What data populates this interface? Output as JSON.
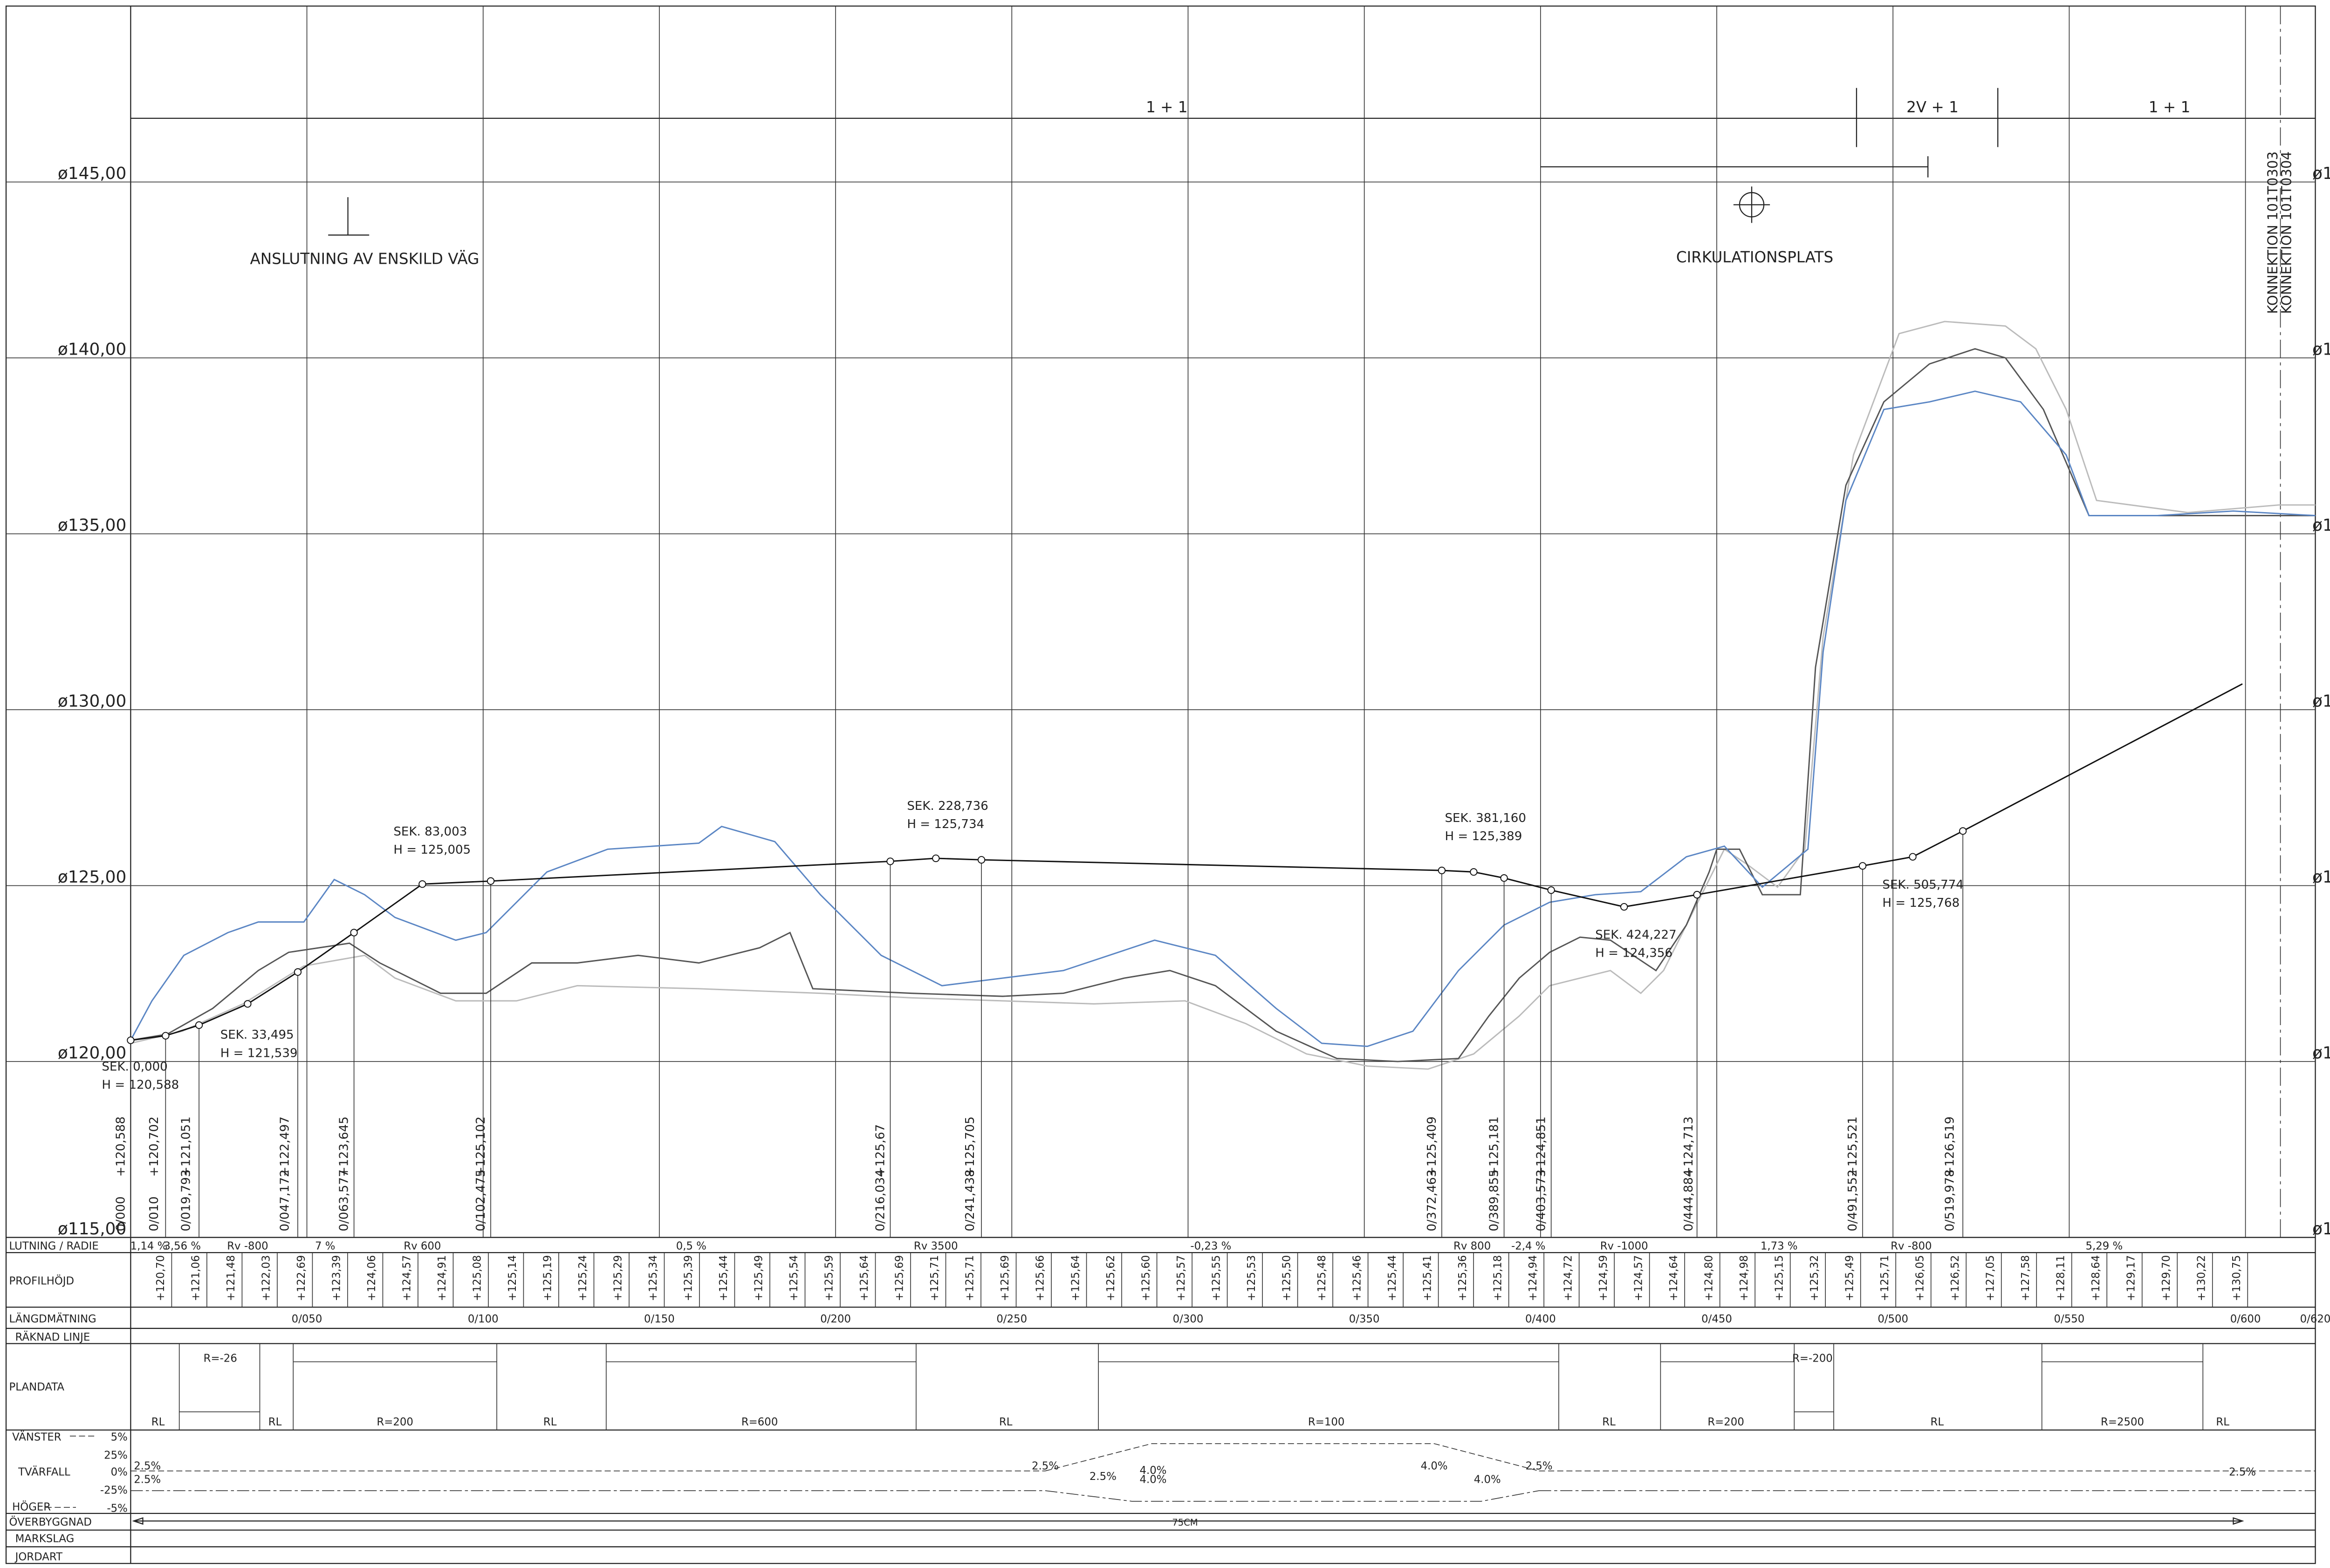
{
  "top": {
    "zones": [
      "1 + 1",
      "2V + 1",
      "1 + 1"
    ],
    "anslutning": "ANSLUTNING AV ENSKILD VÄG",
    "cirkulation": "CIRKULATIONSPLATS",
    "konnektion": [
      "KONNEKTION 101T0303",
      "KONNEKTION 101T0304"
    ]
  },
  "elevation_labels": [
    "ø145,00",
    "ø140,00",
    "ø135,00",
    "ø130,00",
    "ø125,00",
    "ø120,00",
    "ø115,00"
  ],
  "sections": [
    {
      "sek": "SEK. 0,000",
      "h": "H = 120,588"
    },
    {
      "sek": "SEK. 33,495",
      "h": "H = 121,539"
    },
    {
      "sek": "SEK. 83,003",
      "h": "H = 125,005"
    },
    {
      "sek": "SEK. 228,736",
      "h": "H = 125,734"
    },
    {
      "sek": "SEK. 381,160",
      "h": "H = 125,389"
    },
    {
      "sek": "SEK. 424,227",
      "h": "H = 124,356"
    },
    {
      "sek": "SEK. 505,774",
      "h": "H = 125,768"
    }
  ],
  "points": [
    {
      "station": "0/000",
      "height": "+120,588"
    },
    {
      "station": "0/010",
      "height": "+120,702"
    },
    {
      "station": "0/019,793",
      "height": "+121,051"
    },
    {
      "station": "0/047,172",
      "height": "+122,497"
    },
    {
      "station": "0/063,577",
      "height": "+123,645"
    },
    {
      "station": "0/102,475",
      "height": "+125,102"
    },
    {
      "station": "0/216,034",
      "height": "+125,67"
    },
    {
      "station": "0/241,438",
      "height": "+125,705"
    },
    {
      "station": "0/372,463",
      "height": "+125,409"
    },
    {
      "station": "0/389,855",
      "height": "+125,181"
    },
    {
      "station": "0/403,573",
      "height": "+124,851"
    },
    {
      "station": "0/444,884",
      "height": "+124,713"
    },
    {
      "station": "0/491,552",
      "height": "+125,521"
    },
    {
      "station": "0/519,978",
      "height": "+126,519"
    }
  ],
  "table": {
    "headers": [
      "LUTNING / RADIE",
      "PROFILHÖJD",
      "LÄNGDMÄTNING",
      "RÄKNAD LINJE",
      "PLANDATA",
      "VÄNSTER",
      "TVÄRFALL",
      "HÖGER",
      "ÖVERBYGGNAD",
      "MARKSLAG",
      "JORDART"
    ],
    "lutning": [
      "1,14 %",
      "3,56 %",
      "Rv -800",
      "7 %",
      "Rv 600",
      "0,5 %",
      "Rv 3500",
      "-0,23 %",
      "Rv 800",
      "-2,4 %",
      "Rv -1000",
      "1,73 %",
      "Rv -800",
      "5,29 %"
    ],
    "profilhojd": [
      "+120,70",
      "+121,06",
      "+121,48",
      "+122,03",
      "+122,69",
      "+123,39",
      "+124,06",
      "+124,57",
      "+124,91",
      "+125,08",
      "+125,14",
      "+125,19",
      "+125,24",
      "+125,29",
      "+125,34",
      "+125,39",
      "+125,44",
      "+125,49",
      "+125,54",
      "+125,59",
      "+125,64",
      "+125,69",
      "+125,71",
      "+125,71",
      "+125,69",
      "+125,66",
      "+125,64",
      "+125,62",
      "+125,60",
      "+125,57",
      "+125,55",
      "+125,53",
      "+125,50",
      "+125,48",
      "+125,46",
      "+125,44",
      "+125,41",
      "+125,36",
      "+125,18",
      "+124,94",
      "+124,72",
      "+124,59",
      "+124,57",
      "+124,64",
      "+124,80",
      "+124,98",
      "+125,15",
      "+125,32",
      "+125,49",
      "+125,71",
      "+126,05",
      "+126,52",
      "+127,05",
      "+127,58",
      "+128,11",
      "+128,64",
      "+129,17",
      "+129,70",
      "+130,22",
      "+130,75"
    ],
    "stations": [
      "0/050",
      "0/100",
      "0/150",
      "0/200",
      "0/250",
      "0/300",
      "0/350",
      "0/400",
      "0/450",
      "0/500",
      "0/550",
      "0/600",
      "0/620"
    ],
    "plandata": [
      "RL",
      "R=-26",
      "RL",
      "R=200",
      "RL",
      "R=600",
      "RL",
      "R=100",
      "RL",
      "R=200",
      "R=-200",
      "RL",
      "R=2500",
      "RL"
    ],
    "tvarfall_scale": [
      "5%",
      "25%",
      "0%",
      "-25%",
      "-5%"
    ],
    "tvarfall": [
      "2.5%",
      "2.5%",
      "2.5%",
      "2.5%",
      "4.0%",
      "4.0%",
      "4.0%",
      "4.0%",
      "2.5%",
      "2.5%"
    ],
    "overbyggnad": "75CM"
  }
}
